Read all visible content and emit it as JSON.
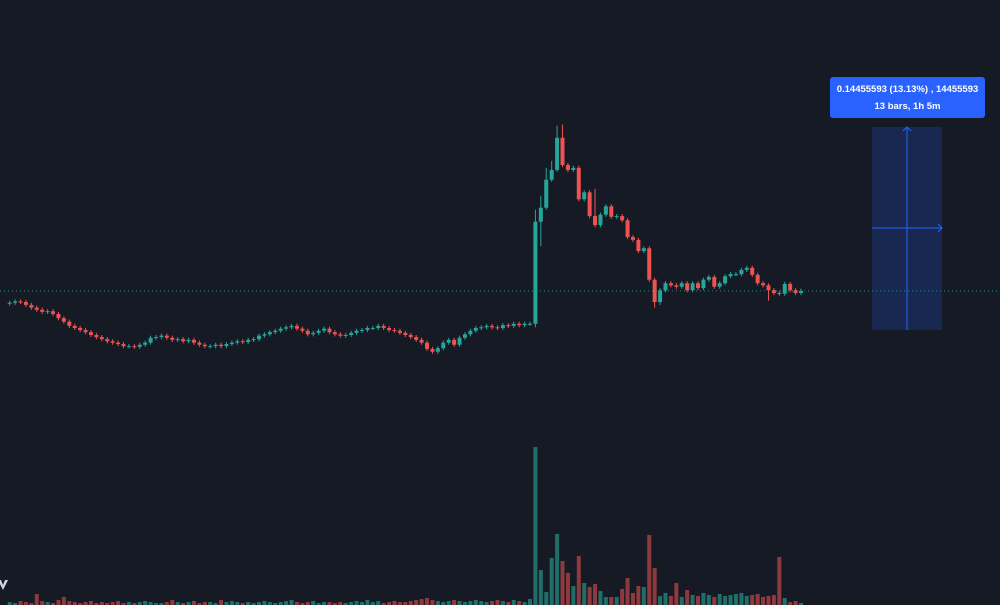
{
  "chart_data": {
    "type": "candlestick",
    "colors": {
      "background": "#161a25",
      "up": "#26a69a",
      "down": "#ef5350",
      "volume_up": "#1f6f68",
      "volume_down": "#8e3a3c",
      "measure": "#2962ff"
    },
    "grid": false,
    "last_price_line": 1.014,
    "close": [
      0.997,
      0.999,
      0.998,
      0.994,
      0.99,
      0.987,
      0.984,
      0.985,
      0.981,
      0.975,
      0.97,
      0.964,
      0.961,
      0.958,
      0.955,
      0.951,
      0.948,
      0.945,
      0.942,
      0.94,
      0.938,
      0.935,
      0.935,
      0.934,
      0.937,
      0.94,
      0.947,
      0.948,
      0.95,
      0.947,
      0.944,
      0.945,
      0.942,
      0.944,
      0.94,
      0.937,
      0.935,
      0.935,
      0.937,
      0.935,
      0.938,
      0.94,
      0.942,
      0.941,
      0.944,
      0.945,
      0.95,
      0.952,
      0.955,
      0.957,
      0.96,
      0.962,
      0.964,
      0.96,
      0.957,
      0.952,
      0.954,
      0.957,
      0.96,
      0.955,
      0.952,
      0.95,
      0.951,
      0.954,
      0.957,
      0.958,
      0.961,
      0.961,
      0.964,
      0.961,
      0.958,
      0.957,
      0.954,
      0.951,
      0.948,
      0.944,
      0.94,
      0.931,
      0.927,
      0.932,
      0.94,
      0.944,
      0.937,
      0.947,
      0.952,
      0.957,
      0.961,
      0.962,
      0.964,
      0.962,
      0.961,
      0.965,
      0.964,
      0.967,
      0.965,
      0.967,
      0.967,
      1.113,
      1.133,
      1.173,
      1.187,
      1.233,
      1.194,
      1.187,
      1.19,
      1.145,
      1.155,
      1.121,
      1.108,
      1.123,
      1.135,
      1.12,
      1.121,
      1.115,
      1.091,
      1.087,
      1.071,
      1.075,
      1.03,
      0.998,
      1.015,
      1.025,
      1.022,
      1.02,
      1.025,
      1.015,
      1.025,
      1.018,
      1.03,
      1.034,
      1.02,
      1.025,
      1.035,
      1.038,
      1.038,
      1.044,
      1.047,
      1.037,
      1.025,
      1.022,
      1.015,
      1.011,
      1.01,
      1.024,
      1.015,
      1.011,
      1.014
    ],
    "notable_highs": {
      "97": 1.13,
      "98": 1.15,
      "99": 1.19,
      "100": 1.2,
      "101": 1.25,
      "102": 1.252,
      "108": 1.16
    },
    "notable_lows": {
      "97": 0.962,
      "98": 1.078,
      "119": 0.99,
      "120": 0.994,
      "140": 1.0
    },
    "volume": [
      3,
      2,
      4,
      3,
      2,
      11,
      4,
      3,
      2,
      5,
      8,
      4,
      3,
      2,
      3,
      4,
      2,
      3,
      2,
      3,
      4,
      2,
      3,
      2,
      3,
      4,
      3,
      2,
      2,
      3,
      5,
      3,
      2,
      3,
      4,
      2,
      3,
      3,
      2,
      5,
      3,
      4,
      3,
      2,
      3,
      2,
      3,
      4,
      3,
      2,
      3,
      4,
      5,
      3,
      2,
      3,
      4,
      2,
      3,
      3,
      2,
      3,
      2,
      3,
      4,
      3,
      5,
      3,
      4,
      2,
      3,
      4,
      3,
      3,
      4,
      5,
      6,
      7,
      5,
      4,
      3,
      4,
      5,
      4,
      3,
      4,
      5,
      4,
      3,
      4,
      5,
      4,
      3,
      5,
      4,
      3,
      6,
      158,
      35,
      13,
      47,
      71,
      44,
      32,
      19,
      49,
      22,
      18,
      21,
      14,
      8,
      8,
      8,
      16,
      27,
      12,
      19,
      18,
      70,
      37,
      9,
      12,
      9,
      22,
      8,
      15,
      10,
      9,
      12,
      10,
      8,
      11,
      9,
      10,
      11,
      12,
      9,
      10,
      11,
      8,
      9,
      10,
      48,
      7,
      3,
      4,
      2
    ]
  },
  "measure_tool": {
    "line1": "0.14455593 (13.13%) , 14455593",
    "line2": "13 bars, 1h 5m"
  },
  "logo": "TradingView"
}
